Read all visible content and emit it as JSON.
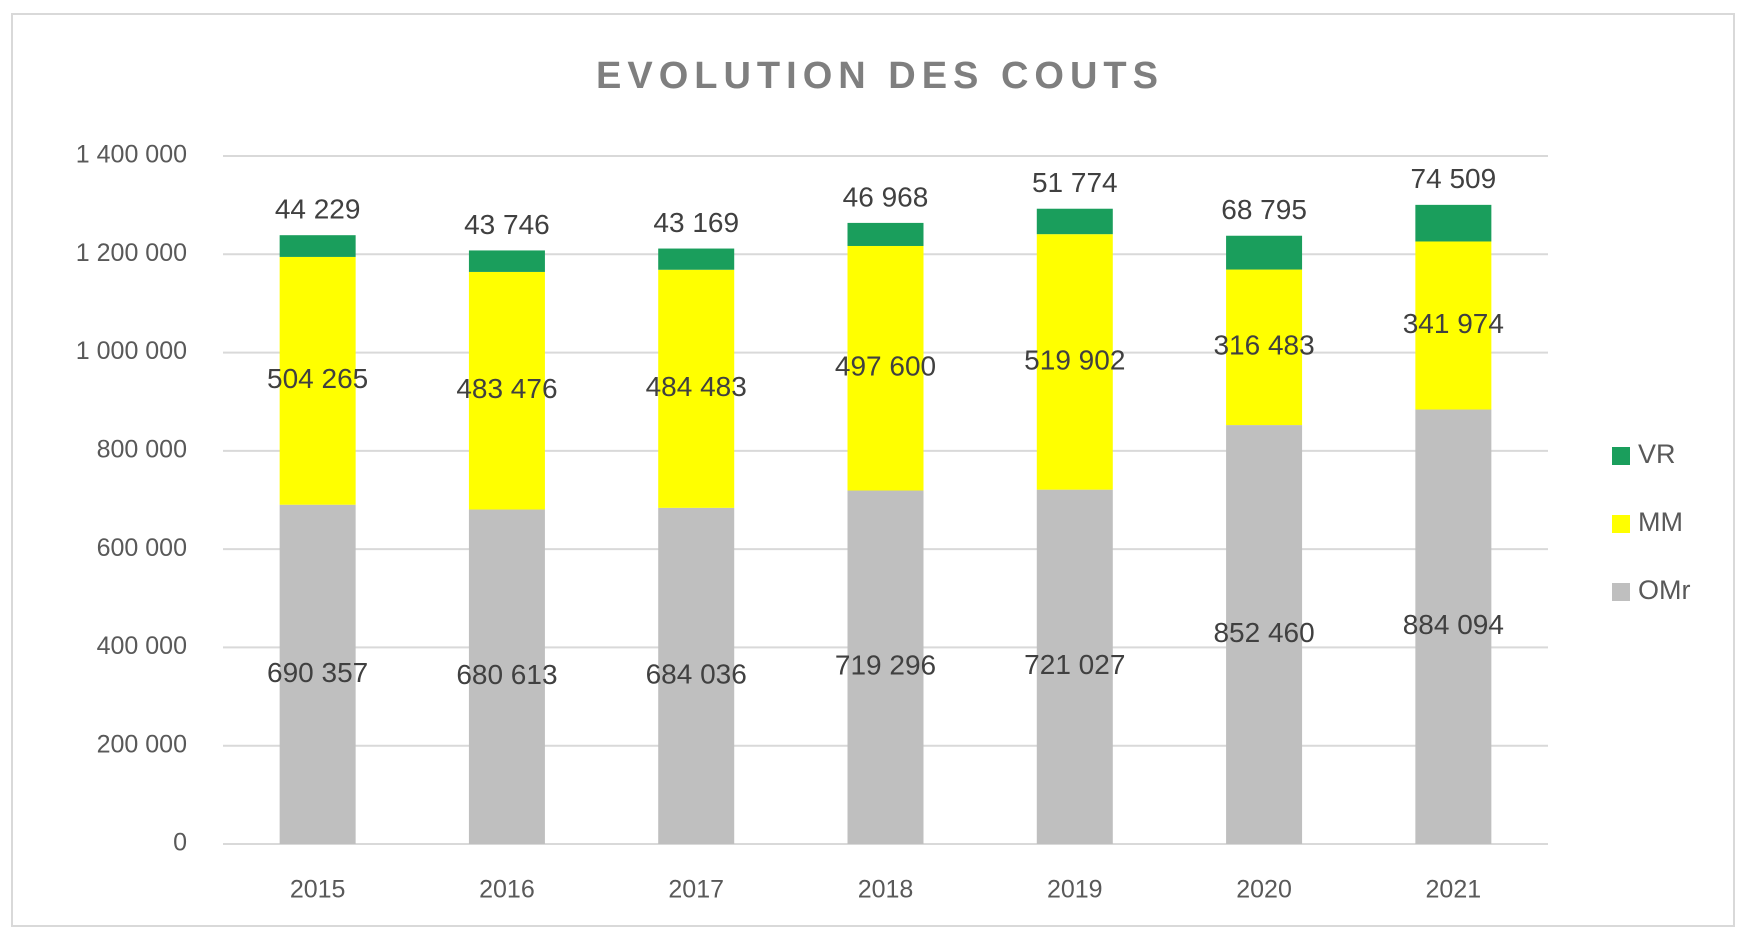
{
  "chart_data": {
    "type": "stacked_bar",
    "title": "EVOLUTION DES COUTS",
    "categories": [
      "2015",
      "2016",
      "2017",
      "2018",
      "2019",
      "2020",
      "2021"
    ],
    "series": [
      {
        "name": "OMr",
        "color": "#bfbfbf",
        "values": [
          690357,
          680613,
          684036,
          719296,
          721027,
          852460,
          884094
        ],
        "value_labels": [
          "690 357",
          "680 613",
          "684 036",
          "719 296",
          "721 027",
          "852 460",
          "884 094"
        ]
      },
      {
        "name": "MM",
        "color": "#ffff00",
        "values": [
          504265,
          483476,
          484483,
          497600,
          519902,
          316483,
          341974
        ],
        "value_labels": [
          "504 265",
          "483 476",
          "484 483",
          "497 600",
          "519 902",
          "316 483",
          "341 974"
        ]
      },
      {
        "name": "VR",
        "color": "#1a9e5c",
        "values": [
          44229,
          43746,
          43169,
          46968,
          51774,
          68795,
          74509
        ],
        "value_labels": [
          "44 229",
          "43 746",
          "43 169",
          "46 968",
          "51 774",
          "68 795",
          "74 509"
        ]
      }
    ],
    "ylim": [
      0,
      1400000
    ],
    "yticks": [
      0,
      {
        "value": 200000,
        "label": "200 000"
      },
      {
        "value": 400000,
        "label": "400 000"
      },
      {
        "value": 600000,
        "label": "600 000"
      },
      {
        "value": 800000,
        "label": "800 000"
      },
      {
        "value": 1000000,
        "label": "1 000 000"
      },
      {
        "value": 1200000,
        "label": "1 200 000"
      },
      {
        "value": 1400000,
        "label": "1 400 000"
      }
    ],
    "grid": true,
    "legend": "right"
  }
}
